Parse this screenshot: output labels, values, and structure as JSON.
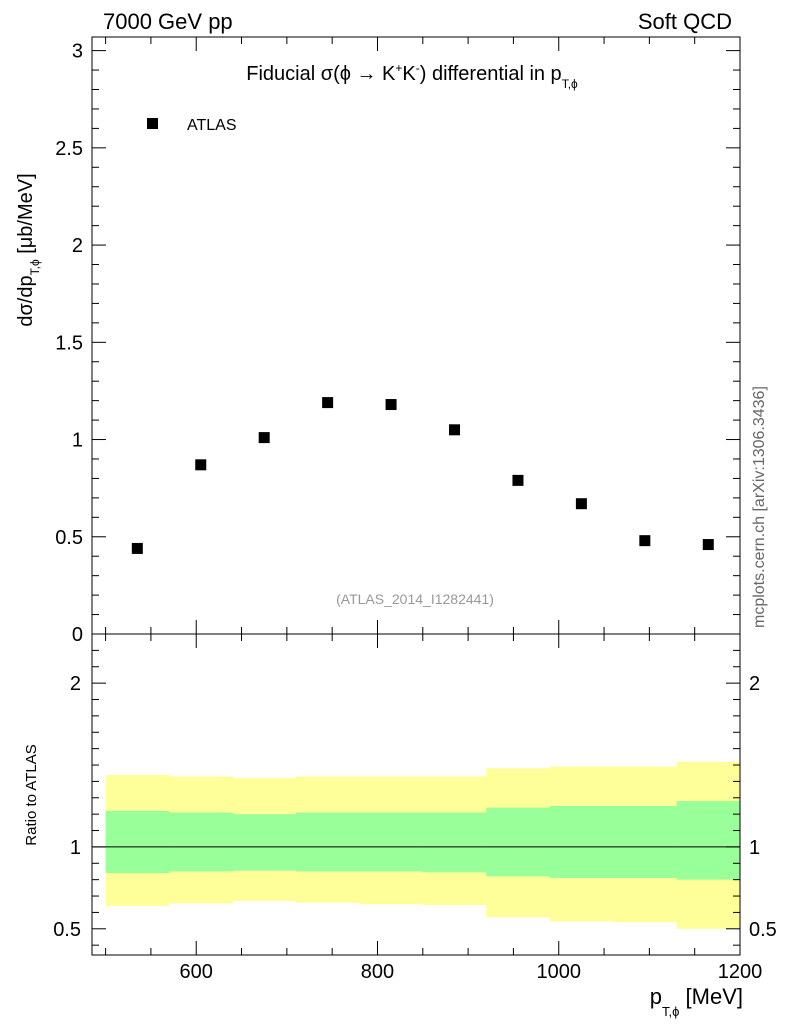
{
  "header": {
    "left": "7000 GeV pp",
    "right": "Soft QCD"
  },
  "side_label": "mcplots.cern.ch [arXiv:1306.3436]",
  "colors": {
    "inner_band": "#99ff99",
    "outer_band": "#ffff99",
    "marker": "#000000"
  },
  "chart_data": {
    "type": "scatter",
    "title": {
      "prefix": "Fiducial σ(ϕ →  K",
      "sup1": "+",
      "mid": "K",
      "sup2": "-",
      "suffix": ") differential in p",
      "sub": "T,ϕ"
    },
    "legend": {
      "entry": "ATLAS",
      "position": "top-left"
    },
    "analysis_id": "(ATLAS_2014_I1282441)",
    "ylabel": {
      "prefix": "dσ/dp",
      "sub": "T,ϕ",
      "suffix": " [μb/MeV]"
    },
    "xlabel": {
      "prefix": "p",
      "sub": "T,ϕ",
      "suffix": " [MeV]"
    },
    "xlim": [
      485,
      1200
    ],
    "ylim": [
      0,
      3.07
    ],
    "x_ticks": [
      "600",
      "800",
      "1000",
      "1200"
    ],
    "y_ticks": [
      "0",
      "0.5",
      "1",
      "1.5",
      "2",
      "2.5",
      "3"
    ],
    "x_tick_values": [
      600,
      800,
      1000,
      1200
    ],
    "y_tick_values": [
      0,
      0.5,
      1,
      1.5,
      2,
      2.5,
      3
    ],
    "series": [
      {
        "name": "ATLAS",
        "x": [
          535,
          605,
          675,
          745,
          815,
          885,
          955,
          1025,
          1095,
          1165
        ],
        "y": [
          0.44,
          0.87,
          1.01,
          1.19,
          1.18,
          1.05,
          0.79,
          0.67,
          0.48,
          0.46
        ]
      }
    ],
    "ratio": {
      "ylabel": "Ratio to ATLAS",
      "ylim": [
        0.34,
        2.3
      ],
      "y_ticks": [
        "0.5",
        "1",
        "2"
      ],
      "y_tick_values": [
        0.5,
        1,
        2
      ],
      "bin_edges": [
        500,
        570,
        640,
        710,
        780,
        850,
        920,
        990,
        1060,
        1130,
        1200
      ],
      "inner_low": [
        0.84,
        0.85,
        0.855,
        0.85,
        0.85,
        0.845,
        0.82,
        0.81,
        0.81,
        0.8
      ],
      "inner_high": [
        1.22,
        1.21,
        1.2,
        1.21,
        1.21,
        1.21,
        1.24,
        1.25,
        1.25,
        1.28
      ],
      "outer_low": [
        0.64,
        0.655,
        0.67,
        0.66,
        0.65,
        0.645,
        0.57,
        0.545,
        0.54,
        0.5
      ],
      "outer_high": [
        1.44,
        1.43,
        1.42,
        1.43,
        1.43,
        1.43,
        1.48,
        1.49,
        1.49,
        1.52
      ]
    }
  }
}
